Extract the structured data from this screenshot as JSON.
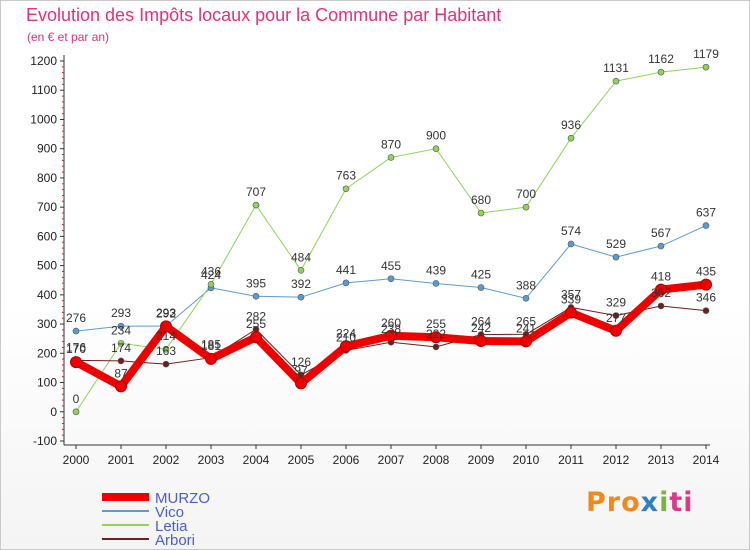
{
  "title": "Evolution des Impôts locaux pour la Commune par Habitant",
  "subtitle": "(en € et par an)",
  "logo": {
    "text": "Proxiti",
    "parts": [
      "Pro",
      "x",
      "i",
      "ti"
    ]
  },
  "chart_data": {
    "type": "line",
    "title": "Evolution des Impôts locaux pour la Commune par Habitant",
    "subtitle": "(en € et par an)",
    "xlabel": "",
    "ylabel": "",
    "ylim": [
      -100,
      1200
    ],
    "yticks": [
      -100,
      0,
      100,
      200,
      300,
      400,
      500,
      600,
      700,
      800,
      900,
      1000,
      1100,
      1200
    ],
    "grid": false,
    "legend": "bottom-left",
    "x": [
      "2000",
      "2001",
      "2002",
      "2003",
      "2004",
      "2005",
      "2006",
      "2007",
      "2008",
      "2009",
      "2010",
      "2011",
      "2012",
      "2013",
      "2014"
    ],
    "series": [
      {
        "name": "MURZO",
        "color": "#ee0000",
        "width": 8,
        "values": [
          170,
          87,
          292,
          181,
          255,
          97,
          224,
          260,
          255,
          242,
          241,
          339,
          277,
          418,
          435
        ]
      },
      {
        "name": "Vico",
        "color": "#5b9bd5",
        "width": 1,
        "values": [
          276,
          293,
          293,
          424,
          395,
          392,
          441,
          455,
          439,
          425,
          388,
          574,
          529,
          567,
          637
        ]
      },
      {
        "name": "Letia",
        "color": "#8fd35a",
        "width": 1,
        "values": [
          0,
          234,
          214,
          436,
          707,
          484,
          763,
          870,
          900,
          680,
          700,
          936,
          1131,
          1162,
          1179
        ]
      },
      {
        "name": "Arbori",
        "color": "#6b1f1f",
        "width": 1,
        "values": [
          176,
          174,
          163,
          185,
          282,
          126,
          210,
          238,
          222,
          264,
          265,
          357,
          329,
          362,
          346
        ]
      }
    ]
  }
}
